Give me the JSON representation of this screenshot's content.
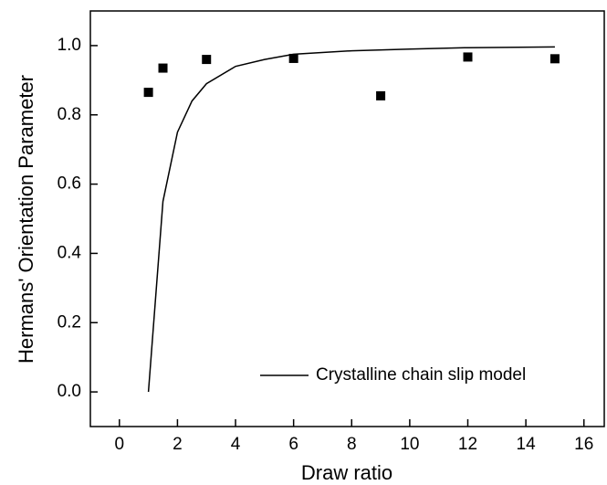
{
  "chart_data": {
    "type": "scatter",
    "xlabel": "Draw ratio",
    "ylabel": "Hermans' Orientation Parameter",
    "xlim": [
      -1,
      16.7
    ],
    "ylim": [
      -0.1,
      1.1
    ],
    "xticks": [
      0,
      2,
      4,
      6,
      8,
      10,
      12,
      14,
      16
    ],
    "yticks": [
      {
        "value": 0,
        "label": "0.0"
      },
      {
        "value": 0.2,
        "label": "0.2"
      },
      {
        "value": 0.4,
        "label": "0.4"
      },
      {
        "value": 0.6,
        "label": "0.6"
      },
      {
        "value": 0.8,
        "label": "0.8"
      },
      {
        "value": 1,
        "label": "1.0"
      }
    ],
    "legend": "lower right",
    "series": [
      {
        "name": "Crystalline chain slip model",
        "type": "line",
        "color": "#000000",
        "x": [
          1,
          1.5,
          2,
          2.5,
          3,
          4,
          5,
          6,
          8,
          10,
          12,
          15
        ],
        "values": [
          0,
          0.55,
          0.75,
          0.84,
          0.89,
          0.94,
          0.96,
          0.975,
          0.985,
          0.99,
          0.994,
          0.996
        ]
      },
      {
        "type": "scatter",
        "color": "#000000",
        "x": [
          1,
          1.5,
          3,
          6,
          9,
          12,
          15
        ],
        "values": [
          0.865,
          0.935,
          0.96,
          0.963,
          0.855,
          0.967,
          0.962
        ]
      }
    ]
  }
}
